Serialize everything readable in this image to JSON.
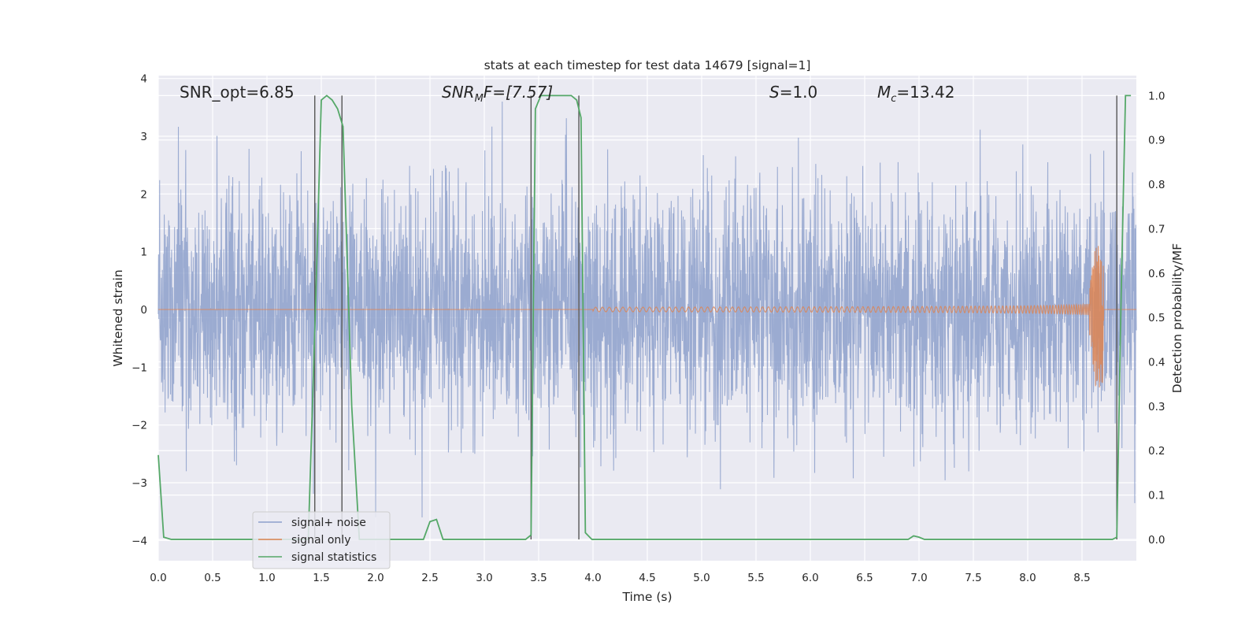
{
  "chart_data": {
    "type": "line",
    "title": "stats at each timestep for test data 14679 [signal=1]",
    "xlabel": "Time (s)",
    "ylabel_left": "Whitened strain",
    "ylabel_right": "Detection probability/MF",
    "xlim": [
      0.0,
      9.0
    ],
    "ylim_left": [
      -4.35,
      4.05
    ],
    "ylim_right": [
      -0.048,
      1.045
    ],
    "xticks": [
      "0.0",
      "0.5",
      "1.0",
      "1.5",
      "2.0",
      "2.5",
      "3.0",
      "3.5",
      "4.0",
      "4.5",
      "5.0",
      "5.5",
      "6.0",
      "6.5",
      "7.0",
      "7.5",
      "8.0",
      "8.5"
    ],
    "yticks_left": [
      "4",
      "3",
      "2",
      "1",
      "0",
      "−1",
      "−2",
      "−3",
      "−4"
    ],
    "yticks_right": [
      "1.0",
      "0.9",
      "0.8",
      "0.7",
      "0.6",
      "0.5",
      "0.4",
      "0.3",
      "0.2",
      "0.1",
      "0.0"
    ],
    "grid": true,
    "legend_position": "lower-left",
    "annotations": {
      "snr_opt": "SNR_opt=6.85",
      "snr_mf_base": "SNR",
      "snr_mf_sub": "M",
      "snr_mf_rest": "F=[7.57]",
      "s_italic": "S",
      "s_rest": "=1.0",
      "mc_base": "M",
      "mc_sub": "c",
      "mc_rest": "=13.42"
    },
    "series": [
      {
        "name": "signal+ noise",
        "color": "#8da0cb",
        "description_values": {
          "time_range": [
            0.0,
            9.0
          ],
          "typical_amplitude": [
            -2.0,
            2.0
          ],
          "peak_max": 3.6,
          "peak_min": -3.6
        }
      },
      {
        "name": "signal only",
        "color": "#dd8452",
        "description_values": {
          "chirp_start": 4.0,
          "chirp_peak_time": 8.65,
          "peak_amplitude": 1.1,
          "trough_amplitude": -1.35
        }
      },
      {
        "name": "signal statistics",
        "color": "#55a868",
        "axis": "right",
        "x": [
          0.0,
          0.05,
          0.12,
          0.5,
          1.0,
          1.3,
          1.38,
          1.45,
          1.5,
          1.55,
          1.6,
          1.65,
          1.7,
          1.78,
          1.85,
          2.0,
          2.4,
          2.44,
          2.5,
          2.56,
          2.62,
          2.7,
          3.0,
          3.38,
          3.43,
          3.47,
          3.52,
          3.58,
          3.7,
          3.8,
          3.85,
          3.89,
          3.93,
          3.99,
          4.5,
          6.0,
          6.9,
          6.95,
          7.0,
          7.05,
          7.5,
          8.5,
          8.78,
          8.82,
          8.86,
          8.9,
          8.95
        ],
        "y": [
          0.19,
          0.005,
          0.0,
          0.0,
          0.0,
          0.0,
          0.0,
          0.55,
          0.99,
          1.0,
          0.99,
          0.97,
          0.93,
          0.3,
          0.0,
          0.0,
          0.0,
          0.0,
          0.04,
          0.045,
          0.0,
          0.0,
          0.0,
          0.0,
          0.01,
          0.97,
          1.0,
          1.0,
          1.0,
          1.0,
          0.99,
          0.95,
          0.015,
          0.0,
          0.0,
          0.0,
          0.0,
          0.008,
          0.005,
          0.0,
          0.0,
          0.0,
          0.0,
          0.005,
          0.55,
          1.0,
          1.0
        ]
      }
    ],
    "detection_markers": [
      1.44,
      1.69,
      3.43,
      3.87,
      8.82
    ]
  }
}
